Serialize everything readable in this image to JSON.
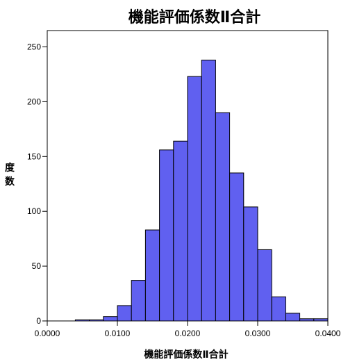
{
  "chart_data": {
    "type": "bar",
    "title": "機能評価係数Ⅱ合計",
    "xlabel": "機能評価係数Ⅱ合計",
    "ylabel": "度数",
    "xlim": [
      0.0,
      0.04
    ],
    "ylim": [
      0,
      262
    ],
    "x_ticks": [
      "0.0000",
      "0.0100",
      "0.0200",
      "0.0300",
      "0.0400"
    ],
    "y_ticks": [
      "0",
      "50",
      "100",
      "150",
      "200",
      "250"
    ],
    "bin_width": 0.002,
    "bins": [
      {
        "start": 0.0,
        "count": 0
      },
      {
        "start": 0.002,
        "count": 0
      },
      {
        "start": 0.004,
        "count": 1
      },
      {
        "start": 0.006,
        "count": 1
      },
      {
        "start": 0.008,
        "count": 4
      },
      {
        "start": 0.01,
        "count": 14
      },
      {
        "start": 0.012,
        "count": 37
      },
      {
        "start": 0.014,
        "count": 83
      },
      {
        "start": 0.016,
        "count": 156
      },
      {
        "start": 0.018,
        "count": 164
      },
      {
        "start": 0.02,
        "count": 223
      },
      {
        "start": 0.022,
        "count": 238
      },
      {
        "start": 0.024,
        "count": 190
      },
      {
        "start": 0.026,
        "count": 135
      },
      {
        "start": 0.028,
        "count": 104
      },
      {
        "start": 0.03,
        "count": 65
      },
      {
        "start": 0.032,
        "count": 22
      },
      {
        "start": 0.034,
        "count": 7
      },
      {
        "start": 0.036,
        "count": 2
      },
      {
        "start": 0.038,
        "count": 2
      }
    ],
    "bar_color": "#6060f0",
    "grid": false
  }
}
